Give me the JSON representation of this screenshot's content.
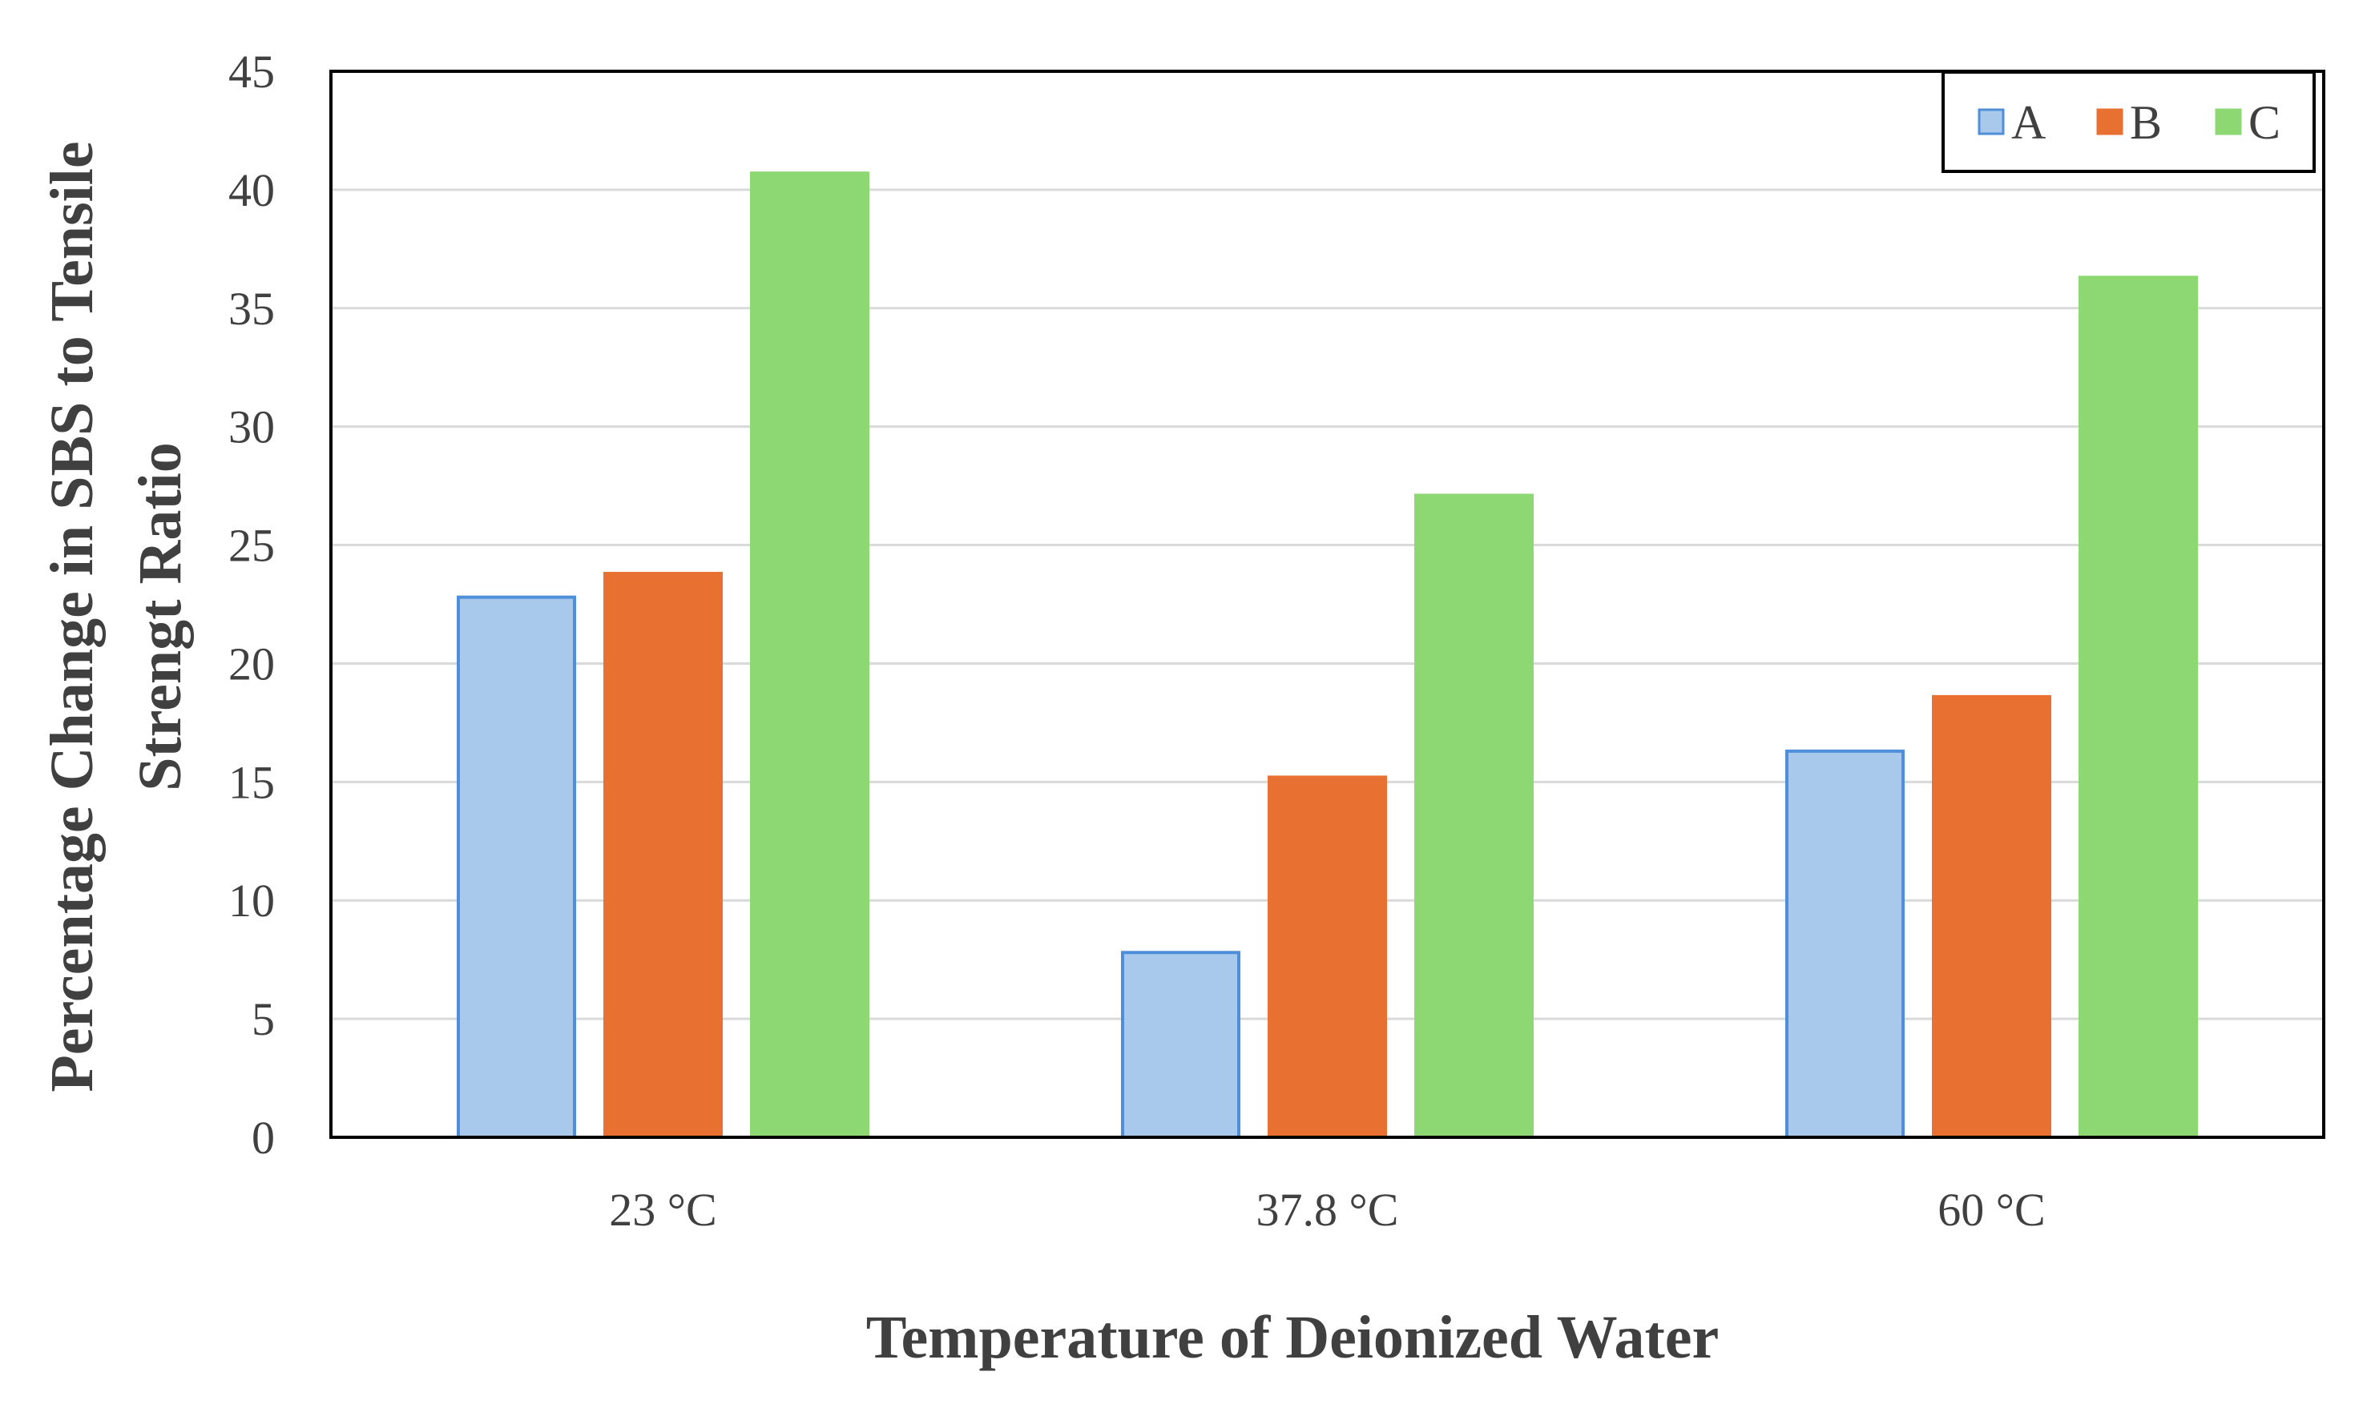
{
  "chart_data": {
    "type": "bar",
    "title": "",
    "xlabel": "Temperature of Deionized Water",
    "ylabel_lines": [
      "Percentage Change in SBS to Tensile",
      "Strengt Ratio"
    ],
    "categories": [
      "23 °C",
      "37.8 °C",
      "60 °C"
    ],
    "series": [
      {
        "name": "A",
        "color": "#a9c9ec",
        "stroke": "#4f8ed8",
        "values": [
          22.8,
          7.8,
          16.3
        ]
      },
      {
        "name": "B",
        "color": "#e87030",
        "stroke": "#e87030",
        "values": [
          23.8,
          15.2,
          18.6
        ]
      },
      {
        "name": "C",
        "color": "#8ed873",
        "stroke": "#8ed873",
        "values": [
          40.7,
          27.1,
          36.3
        ]
      }
    ],
    "ylim": [
      0,
      45
    ],
    "yticks": [
      0,
      5,
      10,
      15,
      20,
      25,
      30,
      35,
      40,
      45
    ],
    "grid": true,
    "legend": "top-right"
  }
}
